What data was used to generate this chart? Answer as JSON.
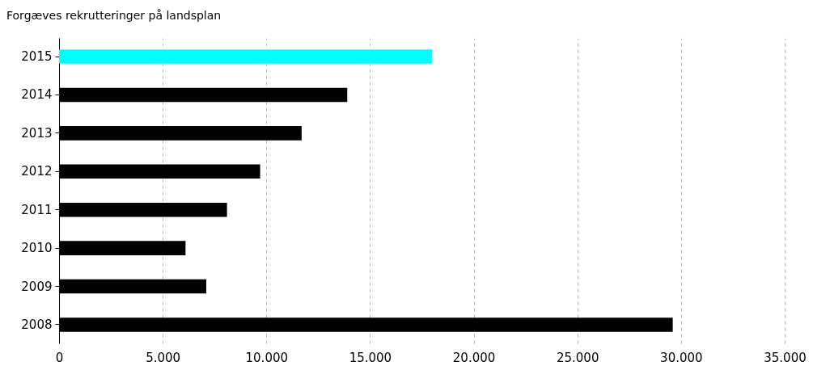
{
  "chart_data": {
    "type": "bar",
    "orientation": "horizontal",
    "title": "Forgæves rekrutteringer på landsplan",
    "categories": [
      "2015",
      "2014",
      "2013",
      "2012",
      "2011",
      "2010",
      "2009",
      "2008"
    ],
    "values": [
      18000,
      13900,
      11700,
      9700,
      8100,
      6100,
      7100,
      29600
    ],
    "colors": [
      "#00ffff",
      "#000000",
      "#000000",
      "#000000",
      "#000000",
      "#000000",
      "#000000",
      "#000000"
    ],
    "xlim": [
      0,
      35000
    ],
    "xticks": [
      0,
      {
        "value": 5000,
        "label": "5.000"
      },
      {
        "value": 10000,
        "label": "10.000"
      },
      {
        "value": 15000,
        "label": "15.000"
      },
      {
        "value": 20000,
        "label": "20.000"
      },
      {
        "value": 25000,
        "label": "25.000"
      },
      {
        "value": 30000,
        "label": "30.000"
      },
      {
        "value": 35000,
        "label": "35.000"
      }
    ],
    "grid": "x"
  }
}
